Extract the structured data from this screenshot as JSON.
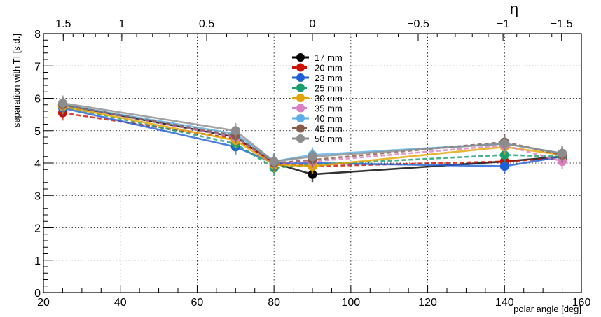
{
  "chart_data": {
    "type": "line",
    "xlabel": "polar angle [deg]",
    "ylabel": "separation with TI [s.d.]",
    "top_axis_label": "η",
    "xlim": [
      20,
      160
    ],
    "ylim": [
      0,
      8
    ],
    "x_ticks": [
      "20",
      "40",
      "60",
      "80",
      "100",
      "120",
      "140",
      "160"
    ],
    "y_ticks": [
      "0",
      "1",
      "2",
      "3",
      "4",
      "5",
      "6",
      "7",
      "8"
    ],
    "top_ticks": [
      {
        "eta": 1.5,
        "label": "1.5"
      },
      {
        "eta": 1,
        "label": "1"
      },
      {
        "eta": 0.5,
        "label": "0.5"
      },
      {
        "eta": 0,
        "label": "0"
      },
      {
        "eta": -0.5,
        "label": "−0.5"
      },
      {
        "eta": -1,
        "label": "−1"
      },
      {
        "eta": -1.5,
        "label": "−1.5"
      }
    ],
    "grid": true,
    "legend_position": "top-center",
    "x": [
      25,
      70,
      80,
      90,
      140,
      155
    ],
    "series": [
      {
        "name": "17 mm",
        "color": "#000000",
        "dashed": false,
        "values": [
          5.8,
          4.8,
          4.0,
          3.65,
          4.05,
          4.2
        ]
      },
      {
        "name": "20 mm",
        "color": "#cc1100",
        "dashed": true,
        "values": [
          5.55,
          4.75,
          4.0,
          3.9,
          4.05,
          4.15
        ]
      },
      {
        "name": "23 mm",
        "color": "#1f5fd6",
        "dashed": false,
        "values": [
          5.7,
          4.5,
          4.0,
          4.0,
          3.9,
          4.2
        ]
      },
      {
        "name": "25 mm",
        "color": "#1a9e6e",
        "dashed": true,
        "values": [
          5.75,
          4.6,
          3.85,
          3.95,
          4.25,
          4.2
        ]
      },
      {
        "name": "30 mm",
        "color": "#e3a300",
        "dashed": false,
        "values": [
          5.75,
          4.7,
          3.95,
          3.9,
          4.5,
          4.25
        ]
      },
      {
        "name": "35 mm",
        "color": "#d97ec0",
        "dashed": true,
        "values": [
          5.8,
          4.8,
          4.0,
          4.05,
          4.55,
          4.05
        ]
      },
      {
        "name": "40 mm",
        "color": "#5aaee8",
        "dashed": false,
        "values": [
          5.8,
          4.9,
          4.05,
          4.25,
          4.6,
          4.3
        ]
      },
      {
        "name": "45 mm",
        "color": "#8a5a48",
        "dashed": true,
        "values": [
          5.8,
          4.85,
          4.0,
          4.1,
          4.65,
          4.25
        ]
      },
      {
        "name": "50 mm",
        "color": "#8c8c8c",
        "dashed": false,
        "values": [
          5.85,
          5.0,
          4.05,
          4.2,
          4.6,
          4.3
        ]
      }
    ]
  }
}
